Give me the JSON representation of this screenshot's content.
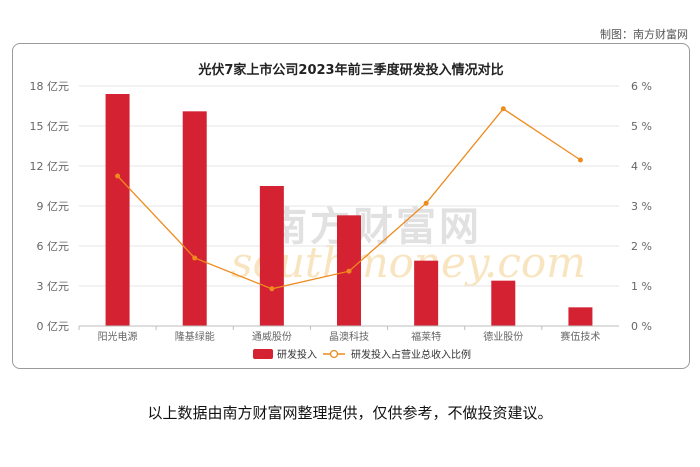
{
  "credit": "制图：南方财富网",
  "watermark": {
    "cn": "南方财富网",
    "en": "southmoney.com"
  },
  "footer": "以上数据由南方财富网整理提供，仅供参考，不做投资建议。",
  "colors": {
    "bar": "#d42232",
    "line": "#ee8a1e",
    "grid": "#e6e6e6",
    "axis_text": "#666666"
  },
  "chart_data": {
    "type": "bar",
    "title": "光伏7家上市公司2023年前三季度研发投入情况对比",
    "categories": [
      "阳光电源",
      "隆基绿能",
      "通威股份",
      "晶澳科技",
      "福莱特",
      "德业股份",
      "赛伍技术"
    ],
    "series": [
      {
        "name": "研发投入",
        "type": "bar",
        "axis": "left",
        "values": [
          17.4,
          16.1,
          10.5,
          8.3,
          4.9,
          3.4,
          1.4
        ]
      },
      {
        "name": "研发投入占营业总收入比例",
        "type": "line",
        "axis": "right",
        "values": [
          3.75,
          1.7,
          0.93,
          1.37,
          3.07,
          5.43,
          4.15
        ]
      }
    ],
    "y_left": {
      "min": 0,
      "max": 18,
      "ticks": [
        0,
        3,
        6,
        9,
        12,
        15,
        18
      ],
      "unit": "亿元"
    },
    "y_right": {
      "min": 0,
      "max": 6,
      "ticks": [
        0,
        1,
        2,
        3,
        4,
        5,
        6
      ],
      "unit": "%"
    },
    "grid": true,
    "legend_position": "bottom-center"
  }
}
